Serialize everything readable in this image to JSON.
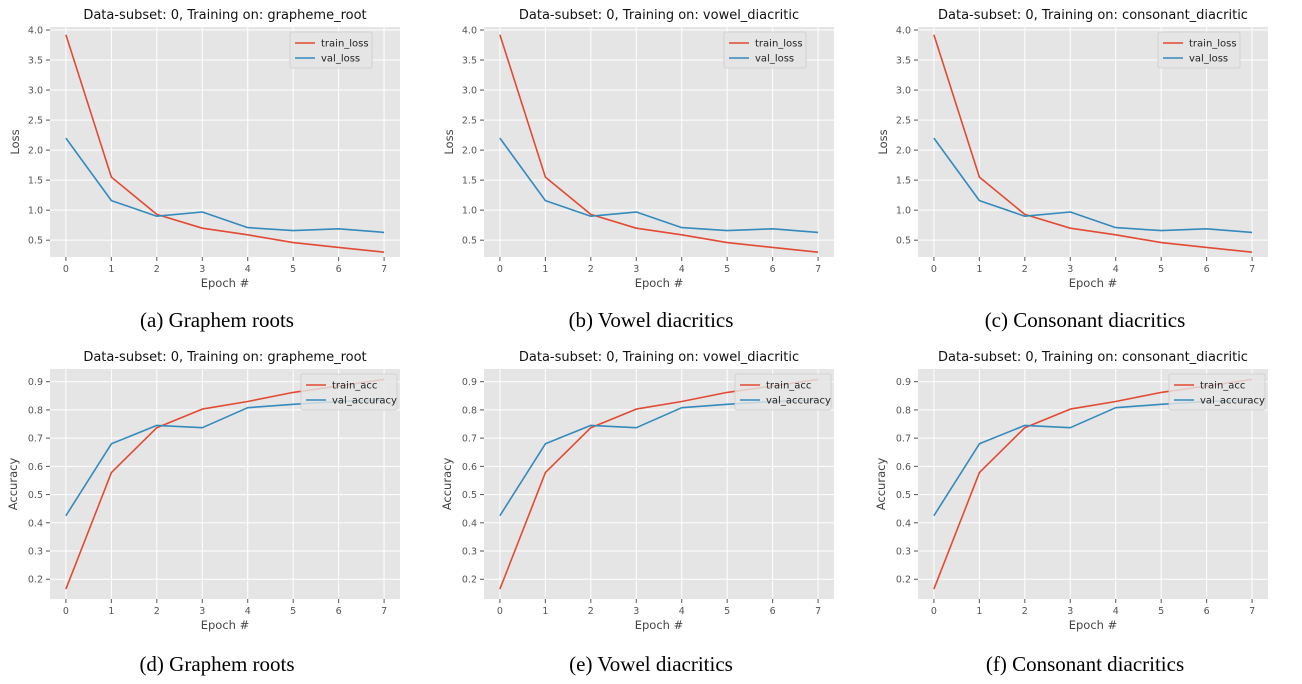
{
  "figure": {
    "panels": [
      {
        "label": "(a) Graphem roots"
      },
      {
        "label": "(b) Vowel diacritics"
      },
      {
        "label": "(c) Consonant diacritics"
      },
      {
        "label": "(d) Graphem roots"
      },
      {
        "label": "(e) Vowel diacritics"
      },
      {
        "label": "(f) Consonant diacritics"
      }
    ]
  },
  "colors": {
    "train": "#e24a33",
    "val": "#348abd",
    "plot_bg": "#e5e5e5",
    "grid": "#ffffff"
  },
  "chart_data": [
    {
      "type": "line",
      "title": "Data-subset: 0, Training on: grapheme_root",
      "xlabel": "Epoch #",
      "ylabel": "Loss",
      "x": [
        0,
        1,
        2,
        3,
        4,
        5,
        6,
        7
      ],
      "xlim": [
        -0.35,
        7.35
      ],
      "ylim": [
        0.22,
        4.05
      ],
      "yticks": [
        0.5,
        1.0,
        1.5,
        2.0,
        2.5,
        3.0,
        3.5,
        4.0
      ],
      "grid": true,
      "legend": "top-right",
      "series": [
        {
          "name": "train_loss",
          "color": "#e24a33",
          "values": [
            3.92,
            1.55,
            0.93,
            0.7,
            0.59,
            0.46,
            0.38,
            0.3
          ]
        },
        {
          "name": "val_loss",
          "color": "#348abd",
          "values": [
            2.2,
            1.16,
            0.9,
            0.97,
            0.71,
            0.66,
            0.69,
            0.63
          ]
        }
      ]
    },
    {
      "type": "line",
      "title": "Data-subset: 0, Training on: vowel_diacritic",
      "xlabel": "Epoch #",
      "ylabel": "Loss",
      "x": [
        0,
        1,
        2,
        3,
        4,
        5,
        6,
        7
      ],
      "xlim": [
        -0.35,
        7.35
      ],
      "ylim": [
        0.22,
        4.05
      ],
      "yticks": [
        0.5,
        1.0,
        1.5,
        2.0,
        2.5,
        3.0,
        3.5,
        4.0
      ],
      "grid": true,
      "legend": "top-right",
      "series": [
        {
          "name": "train_loss",
          "color": "#e24a33",
          "values": [
            3.92,
            1.55,
            0.93,
            0.7,
            0.59,
            0.46,
            0.38,
            0.3
          ]
        },
        {
          "name": "val_loss",
          "color": "#348abd",
          "values": [
            2.2,
            1.16,
            0.9,
            0.97,
            0.71,
            0.66,
            0.69,
            0.63
          ]
        }
      ]
    },
    {
      "type": "line",
      "title": "Data-subset: 0, Training on: consonant_diacritic",
      "xlabel": "Epoch #",
      "ylabel": "Loss",
      "x": [
        0,
        1,
        2,
        3,
        4,
        5,
        6,
        7
      ],
      "xlim": [
        -0.35,
        7.35
      ],
      "ylim": [
        0.22,
        4.05
      ],
      "yticks": [
        0.5,
        1.0,
        1.5,
        2.0,
        2.5,
        3.0,
        3.5,
        4.0
      ],
      "grid": true,
      "legend": "top-right",
      "series": [
        {
          "name": "train_loss",
          "color": "#e24a33",
          "values": [
            3.92,
            1.55,
            0.93,
            0.7,
            0.59,
            0.46,
            0.38,
            0.3
          ]
        },
        {
          "name": "val_loss",
          "color": "#348abd",
          "values": [
            2.2,
            1.16,
            0.9,
            0.97,
            0.71,
            0.66,
            0.69,
            0.63
          ]
        }
      ]
    },
    {
      "type": "line",
      "title": "Data-subset: 0, Training on: grapheme_root",
      "xlabel": "Epoch #",
      "ylabel": "Accuracy",
      "x": [
        0,
        1,
        2,
        3,
        4,
        5,
        6,
        7
      ],
      "xlim": [
        -0.35,
        7.35
      ],
      "ylim": [
        0.13,
        0.945
      ],
      "yticks": [
        0.2,
        0.3,
        0.4,
        0.5,
        0.6,
        0.7,
        0.8,
        0.9
      ],
      "grid": true,
      "legend": "top-right",
      "series": [
        {
          "name": "train_acc",
          "color": "#e24a33",
          "values": [
            0.165,
            0.578,
            0.737,
            0.803,
            0.83,
            0.862,
            0.885,
            0.908
          ]
        },
        {
          "name": "val_accuracy",
          "color": "#348abd",
          "values": [
            0.425,
            0.68,
            0.745,
            0.737,
            0.808,
            0.82,
            0.83,
            0.835
          ]
        }
      ]
    },
    {
      "type": "line",
      "title": "Data-subset: 0, Training on: vowel_diacritic",
      "xlabel": "Epoch #",
      "ylabel": "Accuracy",
      "x": [
        0,
        1,
        2,
        3,
        4,
        5,
        6,
        7
      ],
      "xlim": [
        -0.35,
        7.35
      ],
      "ylim": [
        0.13,
        0.945
      ],
      "yticks": [
        0.2,
        0.3,
        0.4,
        0.5,
        0.6,
        0.7,
        0.8,
        0.9
      ],
      "grid": true,
      "legend": "top-right",
      "series": [
        {
          "name": "train_acc",
          "color": "#e24a33",
          "values": [
            0.165,
            0.578,
            0.737,
            0.803,
            0.83,
            0.862,
            0.885,
            0.908
          ]
        },
        {
          "name": "val_accuracy",
          "color": "#348abd",
          "values": [
            0.425,
            0.68,
            0.745,
            0.737,
            0.808,
            0.82,
            0.83,
            0.835
          ]
        }
      ]
    },
    {
      "type": "line",
      "title": "Data-subset: 0, Training on: consonant_diacritic",
      "xlabel": "Epoch #",
      "ylabel": "Accuracy",
      "x": [
        0,
        1,
        2,
        3,
        4,
        5,
        6,
        7
      ],
      "xlim": [
        -0.35,
        7.35
      ],
      "ylim": [
        0.13,
        0.945
      ],
      "yticks": [
        0.2,
        0.3,
        0.4,
        0.5,
        0.6,
        0.7,
        0.8,
        0.9
      ],
      "grid": true,
      "legend": "top-right",
      "series": [
        {
          "name": "train_acc",
          "color": "#e24a33",
          "values": [
            0.165,
            0.578,
            0.737,
            0.803,
            0.83,
            0.862,
            0.885,
            0.908
          ]
        },
        {
          "name": "val_accuracy",
          "color": "#348abd",
          "values": [
            0.425,
            0.68,
            0.745,
            0.737,
            0.808,
            0.82,
            0.83,
            0.835
          ]
        }
      ]
    }
  ]
}
